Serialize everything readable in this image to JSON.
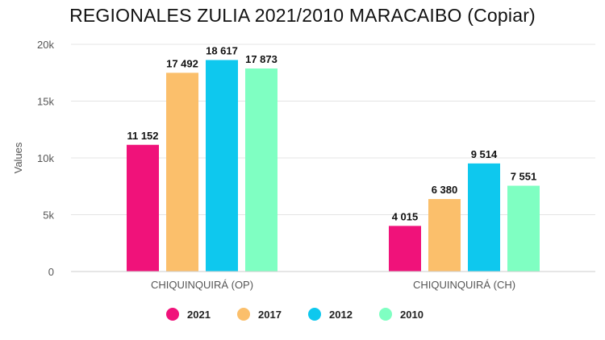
{
  "chart_data": {
    "type": "bar",
    "title": "REGIONALES ZULIA 2021/2010 MARACAIBO (Copiar)",
    "ylabel": "Values",
    "xlabel": "",
    "categories": [
      "CHIQUINQUIRÁ (OP)",
      "CHIQUINQUIRÁ (CH)"
    ],
    "ylim": [
      0,
      20000
    ],
    "yticks": [
      {
        "value": 0,
        "label": "0"
      },
      {
        "value": 5000,
        "label": "5k"
      },
      {
        "value": 10000,
        "label": "10k"
      },
      {
        "value": 15000,
        "label": "15k"
      },
      {
        "value": 20000,
        "label": "20k"
      }
    ],
    "grid": true,
    "legend_position": "bottom",
    "series": [
      {
        "name": "2021",
        "color": "#f0127a",
        "values": [
          11152,
          4015
        ],
        "labels": [
          "11 152",
          "4 015"
        ]
      },
      {
        "name": "2017",
        "color": "#fbbf6b",
        "values": [
          17492,
          6380
        ],
        "labels": [
          "17 492",
          "6 380"
        ]
      },
      {
        "name": "2012",
        "color": "#0ec8ee",
        "values": [
          18617,
          9514
        ],
        "labels": [
          "18 617",
          "9 514"
        ]
      },
      {
        "name": "2010",
        "color": "#7fffc2",
        "values": [
          17873,
          7551
        ],
        "labels": [
          "17 873",
          "7 551"
        ]
      }
    ]
  }
}
